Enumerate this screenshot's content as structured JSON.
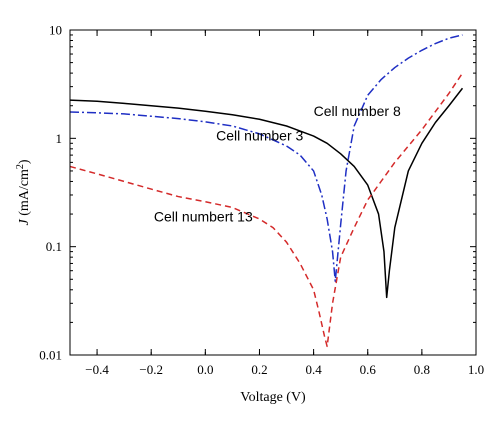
{
  "chart_data": {
    "type": "line",
    "xlabel": "Voltage (V)",
    "ylabel": {
      "main": "J",
      "unit_prefix": " (mA/cm",
      "unit_sup": "2",
      "unit_suffix": ")"
    },
    "xlim": [
      -0.5,
      1.0
    ],
    "ylim": [
      0.01,
      10
    ],
    "yscale": "log",
    "grid": false,
    "x_ticks": [
      -0.4,
      -0.2,
      0.0,
      0.2,
      0.4,
      0.6,
      0.8,
      1.0
    ],
    "x_tick_labels": [
      "−0.4",
      "−0.2",
      "0.0",
      "0.2",
      "0.4",
      "0.6",
      "0.8",
      "1.0"
    ],
    "y_ticks": [
      0.01,
      0.1,
      1,
      10
    ],
    "y_tick_labels": [
      "0.01",
      "0.1",
      "1",
      "10"
    ],
    "series": [
      {
        "name": "Cell number 8",
        "color": "#000000",
        "dash": "solid",
        "x": [
          -0.5,
          -0.4,
          -0.3,
          -0.2,
          -0.1,
          0.0,
          0.1,
          0.2,
          0.3,
          0.4,
          0.45,
          0.5,
          0.55,
          0.6,
          0.64,
          0.66,
          0.67,
          0.68,
          0.7,
          0.75,
          0.8,
          0.85,
          0.9,
          0.95
        ],
        "y": [
          2.25,
          2.2,
          2.1,
          2.0,
          1.9,
          1.78,
          1.65,
          1.5,
          1.3,
          1.05,
          0.9,
          0.72,
          0.55,
          0.37,
          0.2,
          0.09,
          0.034,
          0.06,
          0.15,
          0.5,
          0.9,
          1.4,
          2.0,
          2.9
        ]
      },
      {
        "name": "Cell number 3",
        "color": "#1f2fc4",
        "dash": "dashdot",
        "x": [
          -0.5,
          -0.4,
          -0.3,
          -0.2,
          -0.1,
          0.0,
          0.1,
          0.2,
          0.3,
          0.35,
          0.4,
          0.43,
          0.45,
          0.47,
          0.48,
          0.5,
          0.52,
          0.55,
          0.6,
          0.65,
          0.7,
          0.75,
          0.8,
          0.85,
          0.9,
          0.95
        ],
        "y": [
          1.75,
          1.72,
          1.68,
          1.6,
          1.52,
          1.42,
          1.3,
          1.1,
          0.85,
          0.7,
          0.5,
          0.3,
          0.18,
          0.09,
          0.048,
          0.16,
          0.5,
          1.3,
          2.5,
          3.5,
          4.5,
          5.5,
          6.5,
          7.5,
          8.4,
          9.0
        ]
      },
      {
        "name": "Cell numbert 13",
        "color": "#d42a2a",
        "dash": "dashed",
        "x": [
          -0.5,
          -0.4,
          -0.3,
          -0.2,
          -0.1,
          0.0,
          0.1,
          0.2,
          0.25,
          0.3,
          0.35,
          0.4,
          0.42,
          0.44,
          0.45,
          0.47,
          0.5,
          0.55,
          0.6,
          0.7,
          0.8,
          0.9,
          0.95
        ],
        "y": [
          0.55,
          0.47,
          0.4,
          0.34,
          0.29,
          0.26,
          0.23,
          0.18,
          0.15,
          0.11,
          0.07,
          0.04,
          0.025,
          0.015,
          0.012,
          0.03,
          0.08,
          0.15,
          0.27,
          0.6,
          1.2,
          2.6,
          4.0
        ]
      }
    ],
    "annotations": [
      {
        "text": "Cell number 8",
        "x": 0.4,
        "y": 1.6
      },
      {
        "text": "Cell number 3",
        "x": 0.04,
        "y": 0.95
      },
      {
        "text": "Cell numbert 13",
        "x": -0.19,
        "y": 0.17
      }
    ]
  }
}
